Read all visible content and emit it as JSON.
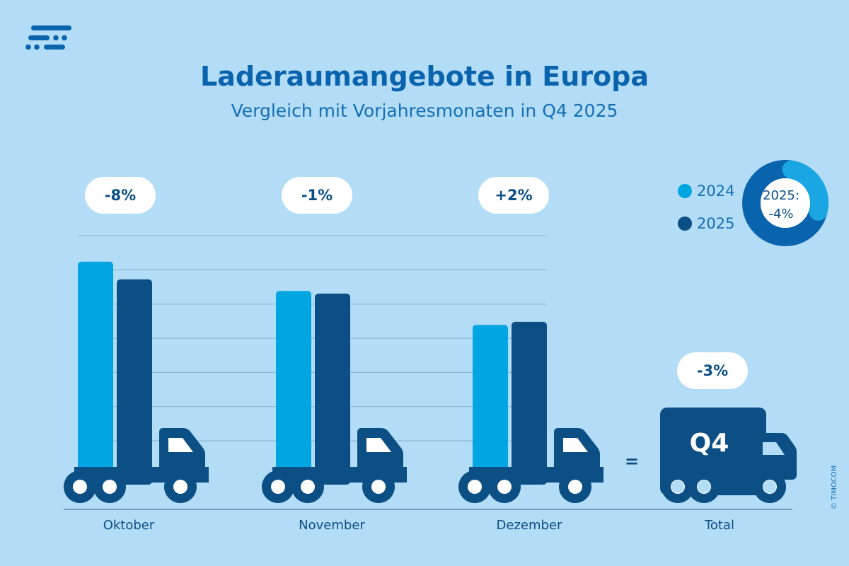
{
  "header": {
    "title": "Laderaumangebote in Europa",
    "subtitle": "Vergleich mit Vorjahresmonaten in Q4 2025"
  },
  "logo_icon": "timocom-dashes-logo",
  "colors": {
    "background": "#b3dcf7",
    "series_2024": "#00a5e2",
    "series_2025": "#0b4f84",
    "title": "#0a64ad"
  },
  "chart_data": {
    "type": "bar",
    "title": "Laderaumangebote in Europa",
    "subtitle": "Vergleich mit Vorjahresmonaten in Q4 2025",
    "categories": [
      "Oktober",
      "November",
      "Dezember"
    ],
    "series": [
      {
        "name": "2024",
        "color": "#00a5e2",
        "values": [
          6.46,
          5.6,
          4.6
        ]
      },
      {
        "name": "2025",
        "color": "#0b4f84",
        "values": [
          5.94,
          5.52,
          4.69
        ]
      }
    ],
    "value_note_scale": "relative, no axis labels",
    "change_labels": [
      "-8%",
      "-1%",
      "+2%"
    ],
    "total": {
      "label": "Total",
      "truck_text": "Q4",
      "change": "-3%"
    },
    "equals": "=",
    "grid": true,
    "legend": {
      "position": "top-right",
      "entries": [
        "2024",
        "2025"
      ]
    },
    "donut": {
      "text_line1": "2025:",
      "text_line2": "-4%",
      "highlight_fraction": 0.29
    }
  },
  "footer": {
    "copyright": "© TIMOCOM"
  }
}
